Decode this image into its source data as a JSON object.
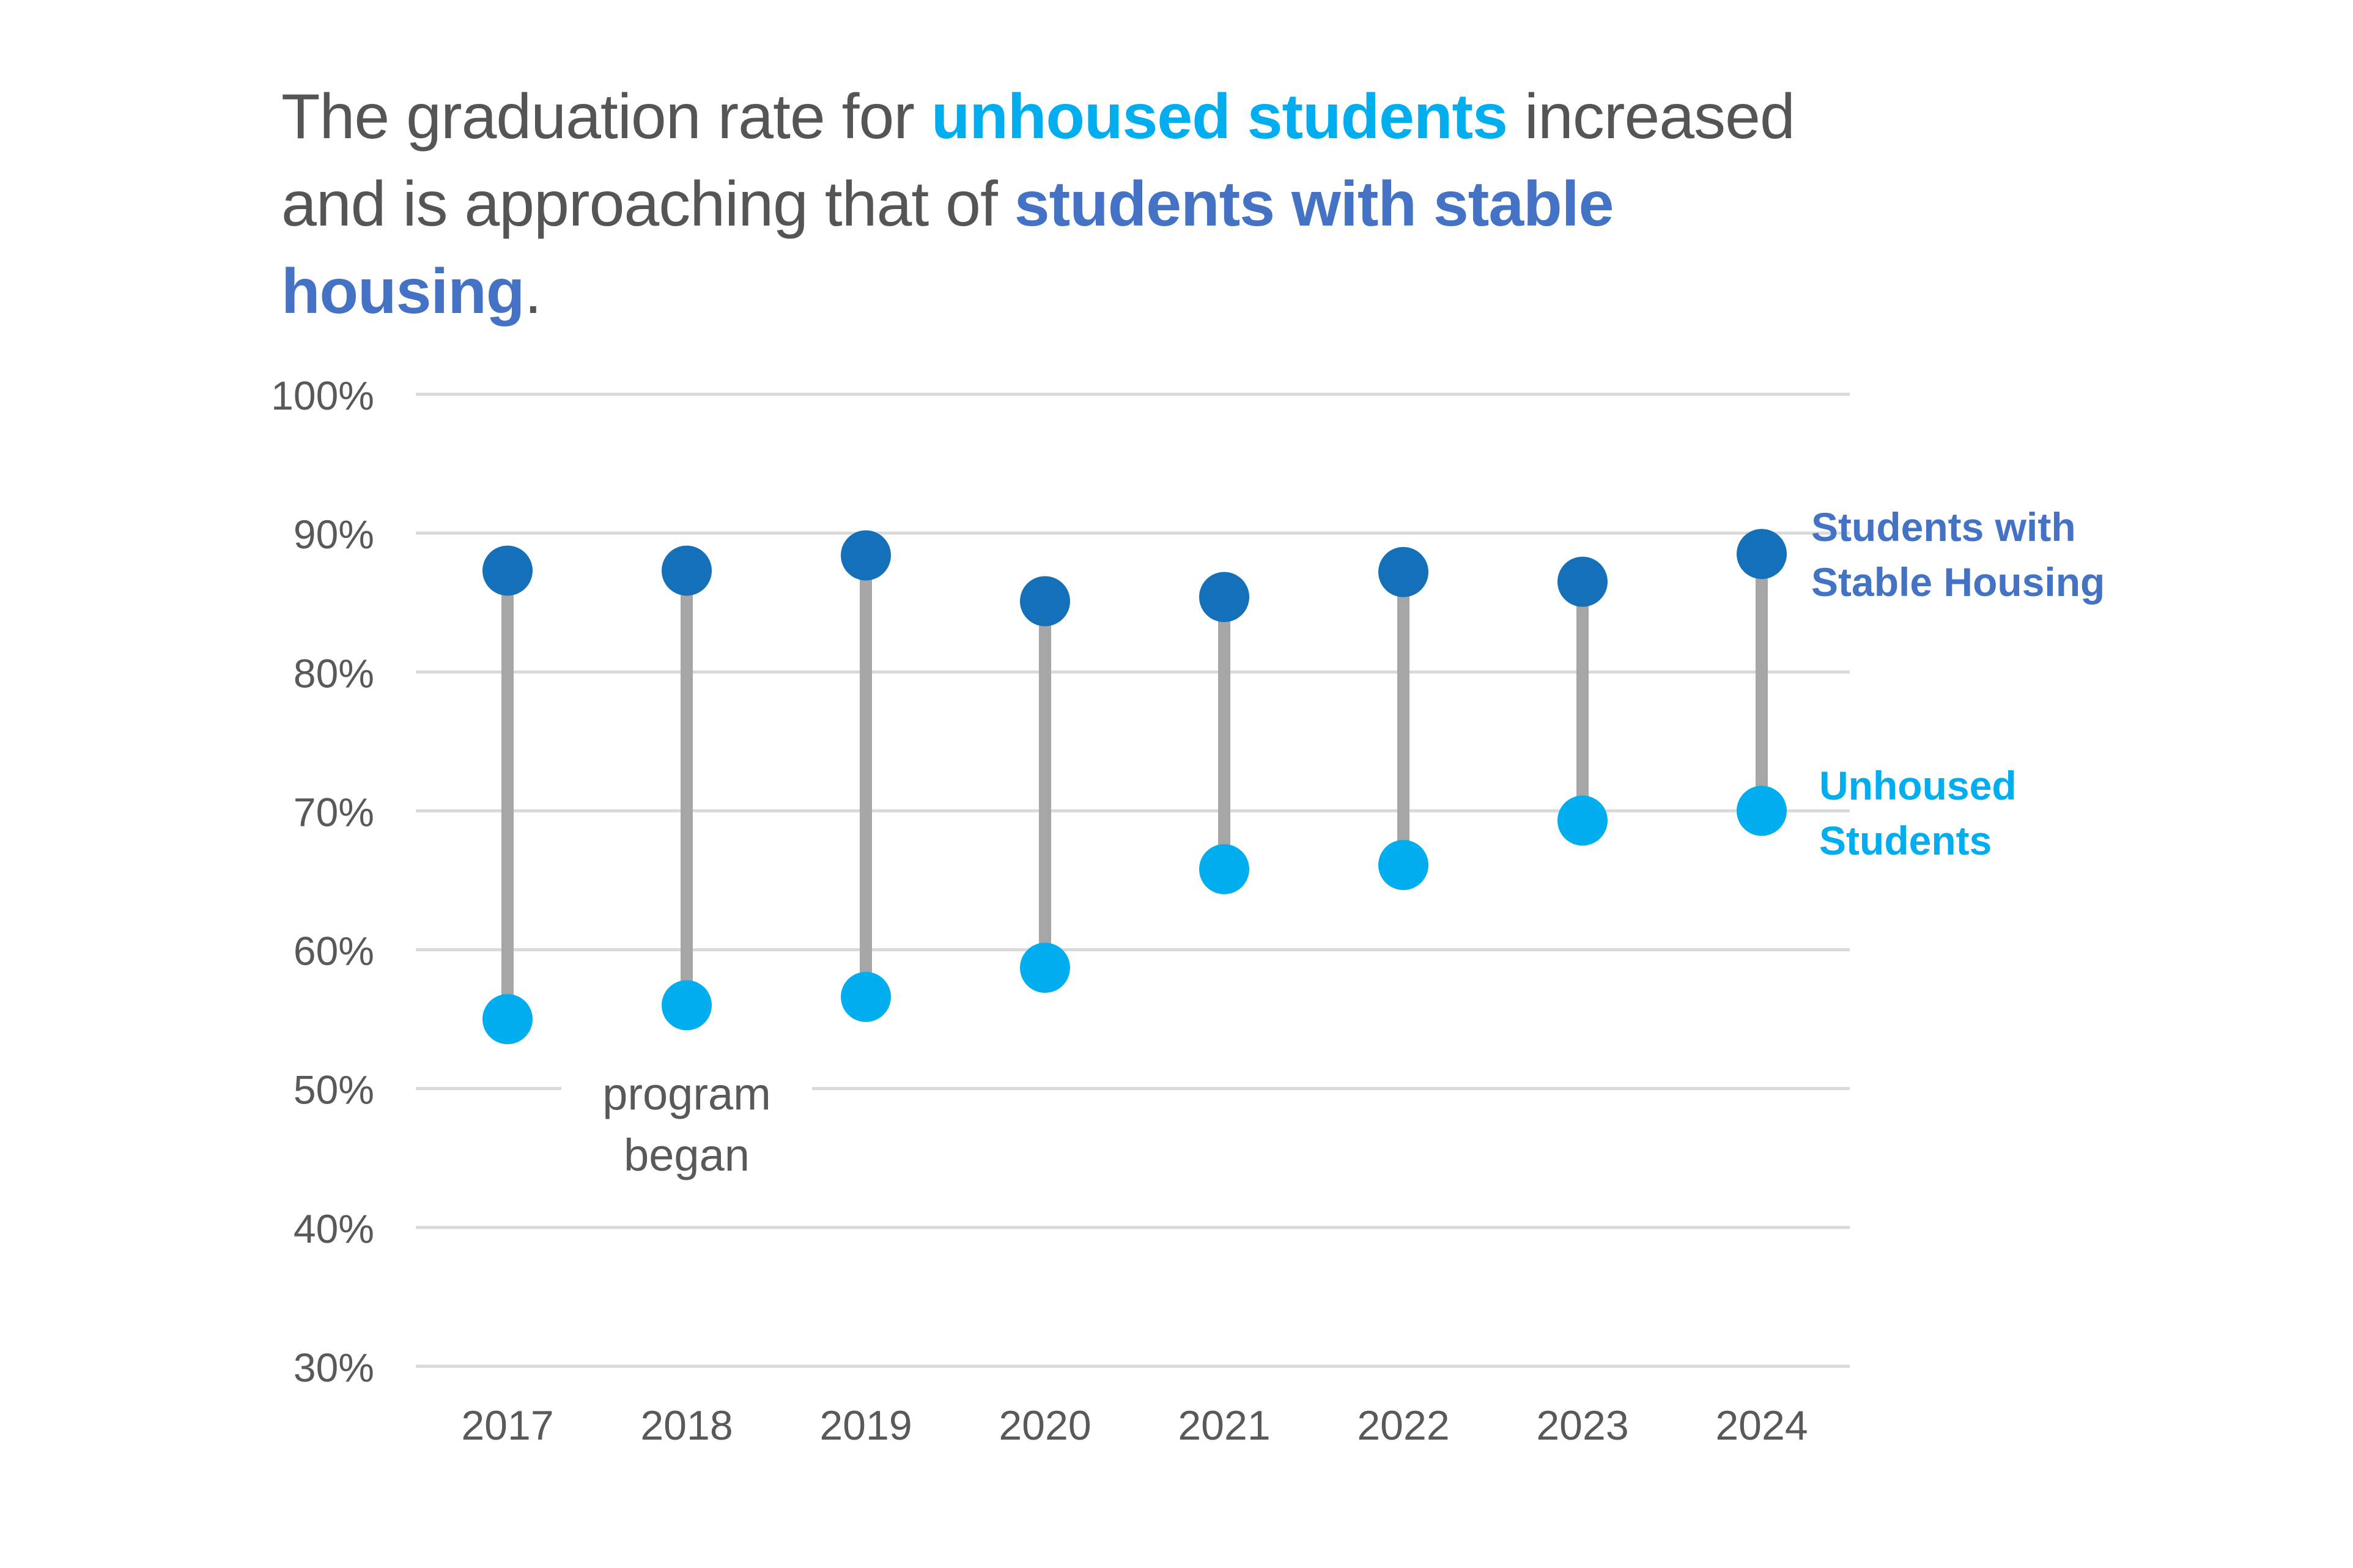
{
  "title": {
    "part1": "The graduation rate for ",
    "highlight1": "unhoused students",
    "part2": " increased and is approaching that of ",
    "highlight2": "students with stable housing",
    "part3": "."
  },
  "colors": {
    "stable": "#1470b8",
    "unhoused": "#00aeef",
    "stable_label": "#4472c4",
    "connector": "#a6a6a6",
    "grid": "#d9d9d9",
    "axis_text": "#595959"
  },
  "chart_data": {
    "type": "dumbbell",
    "categories": [
      "2017",
      "2018",
      "2019",
      "2020",
      "2021",
      "2022",
      "2023",
      "2024"
    ],
    "series": [
      {
        "name": "Students with Stable Housing",
        "name_lines": [
          "Students with",
          "Stable Housing"
        ],
        "values": [
          87.3,
          87.3,
          88.4,
          85.1,
          85.4,
          87.2,
          86.5,
          88.5
        ]
      },
      {
        "name": "Unhoused Students",
        "name_lines": [
          "Unhoused",
          "Students"
        ],
        "values": [
          55.0,
          56.0,
          56.6,
          58.7,
          65.8,
          66.1,
          69.3,
          70.0
        ]
      }
    ],
    "yticks": [
      100,
      90,
      80,
      70,
      60,
      50,
      40,
      30
    ],
    "ytick_labels": [
      "100%",
      "90%",
      "80%",
      "70%",
      "60%",
      "50%",
      "40%",
      "30%"
    ],
    "ylim": [
      30,
      100
    ],
    "grid": true,
    "legend": "right, direct labels",
    "annotation": {
      "text_lines": [
        "program",
        "began"
      ],
      "category": "2018"
    }
  }
}
